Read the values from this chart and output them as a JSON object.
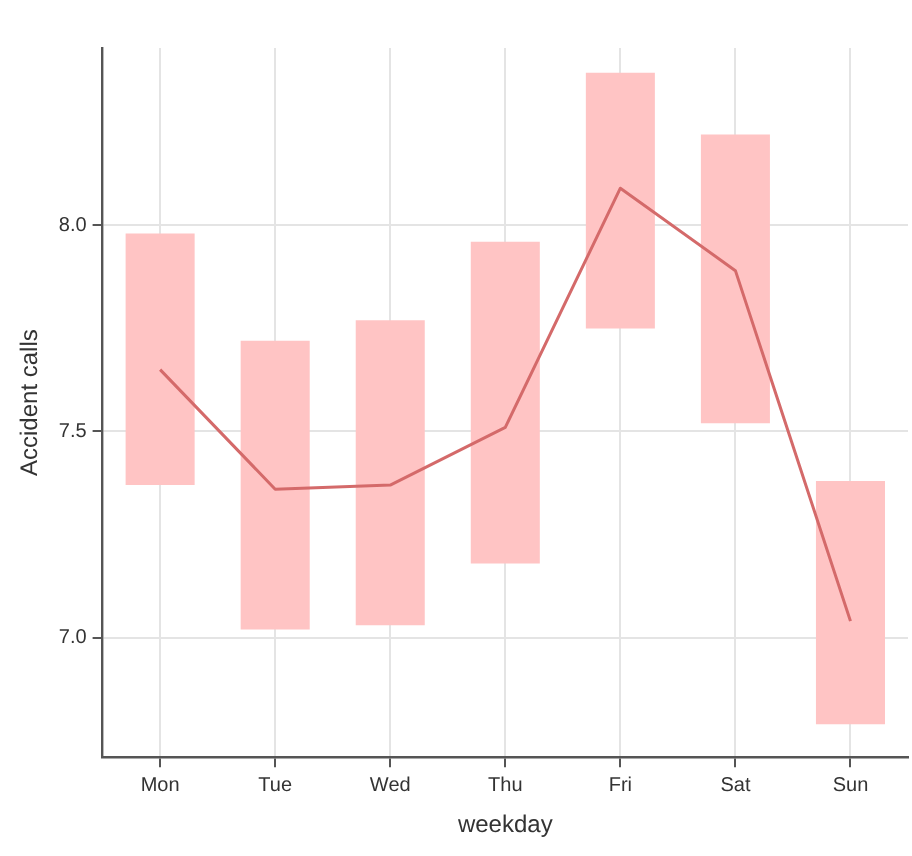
{
  "chart_data": {
    "type": "bar",
    "xlabel": "weekday",
    "ylabel": "Accident calls",
    "categories": [
      "Mon",
      "Tue",
      "Wed",
      "Thu",
      "Fri",
      "Sat",
      "Sun"
    ],
    "series": [
      {
        "color": "#ffc4c4",
        "base": [
          7.37,
          7.02,
          7.03,
          7.18,
          7.75,
          7.52,
          6.79
        ],
        "values": [
          0.61,
          0.7,
          0.74,
          0.78,
          0.62,
          0.7,
          0.59
        ]
      },
      {
        "type": "line",
        "color": "#d46a6a",
        "values": [
          7.65,
          7.36,
          7.37,
          7.51,
          8.09,
          7.89,
          7.04
        ]
      }
    ],
    "ylim": [
      6.71,
      8.43
    ],
    "yticks": [
      {
        "value": 7,
        "label": "7.0"
      },
      {
        "value": 7.5,
        "label": "7.5"
      },
      {
        "value": 8,
        "label": "8.0"
      }
    ],
    "grid": true,
    "legend": false,
    "marker": "none",
    "line_style": "solid"
  }
}
